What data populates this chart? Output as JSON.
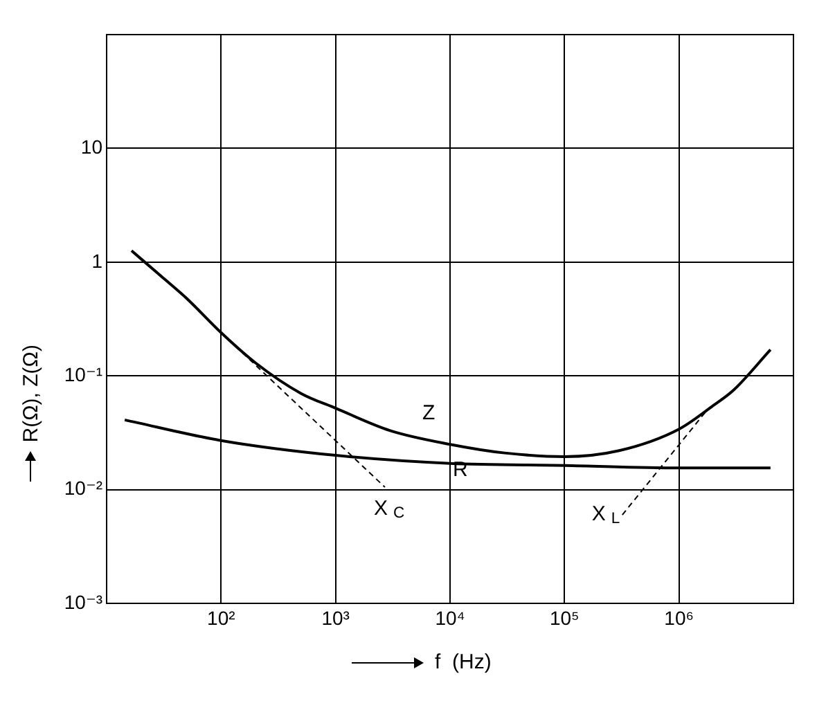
{
  "chart_data": {
    "type": "line",
    "xlabel": "f  (Hz)",
    "ylabel": "R(Ω), Z(Ω)",
    "log": "xy",
    "grid": true,
    "legend": false,
    "marker": "none",
    "xlim": [
      10,
      10000000
    ],
    "ylim": [
      0.001,
      100
    ],
    "xticks": [
      {
        "value": 10,
        "label": null
      },
      {
        "value": 100,
        "label": "10²"
      },
      {
        "value": 1000,
        "label": "10³"
      },
      {
        "value": 10000,
        "label": "10⁴"
      },
      {
        "value": 100000,
        "label": "10⁵"
      },
      {
        "value": 1000000,
        "label": "10⁶"
      },
      {
        "value": 10000000,
        "label": null
      }
    ],
    "yticks": [
      {
        "value": 0.001,
        "label": "10⁻³"
      },
      {
        "value": 0.01,
        "label": "10⁻²"
      },
      {
        "value": 0.1,
        "label": "10⁻¹"
      },
      1,
      10,
      {
        "value": 100,
        "label": null
      }
    ],
    "series": [
      {
        "name": "Z",
        "color": "#000000",
        "x": [
          16.5,
          30,
          50,
          100,
          200,
          500,
          1000,
          3000,
          10000,
          30000,
          100000,
          300000,
          1000000,
          2000000,
          3000000,
          6300000
        ],
        "values": [
          1.26,
          0.75,
          0.48,
          0.24,
          0.13,
          0.07,
          0.052,
          0.033,
          0.025,
          0.021,
          0.0195,
          0.022,
          0.034,
          0.055,
          0.075,
          0.17
        ]
      },
      {
        "name": "R",
        "color": "#000000",
        "x": [
          14.4,
          100,
          1000,
          10000,
          100000,
          1000000,
          6300000
        ],
        "values": [
          0.041,
          0.027,
          0.02,
          0.017,
          0.0163,
          0.0155,
          0.0155
        ]
      },
      {
        "name": "X$_{C}$",
        "color": "#000000",
        "line_style": "dashed",
        "x": [
          100,
          2700
        ],
        "values": [
          0.24,
          0.0105
        ]
      },
      {
        "name": "X$_{L}$",
        "color": "#000000",
        "line_style": "dashed",
        "x": [
          320000,
          1700000
        ],
        "values": [
          0.006,
          0.048
        ]
      }
    ]
  }
}
